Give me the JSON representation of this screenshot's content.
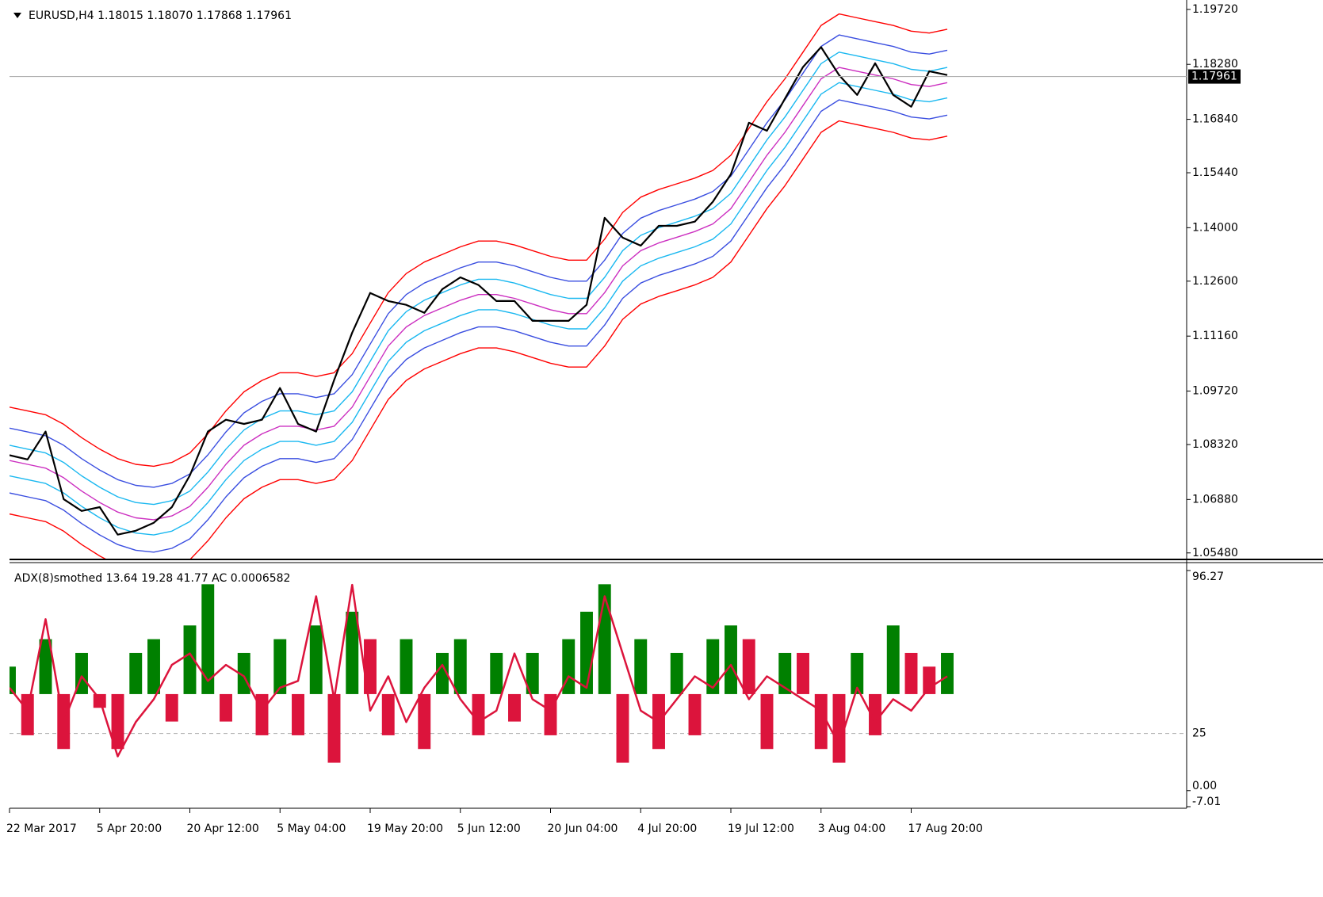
{
  "chart_data": [
    {
      "type": "line",
      "title": "EURUSD,H4  1.18015 1.18070 1.17868 1.17961",
      "xlim": [
        0,
        52
      ],
      "xticks": [
        {
          "value": 0,
          "label": "22 Mar 2017"
        },
        {
          "value": 5,
          "label": "5 Apr 20:00"
        },
        {
          "value": 10,
          "label": "20 Apr 12:00"
        },
        {
          "value": 15,
          "label": "5 May 04:00"
        },
        {
          "value": 20,
          "label": "19 May 20:00"
        },
        {
          "value": 25,
          "label": "5 Jun 12:00"
        },
        {
          "value": 30,
          "label": "20 Jun 04:00"
        },
        {
          "value": 35,
          "label": "4 Jul 20:00"
        },
        {
          "value": 40,
          "label": "19 Jul 12:00"
        },
        {
          "value": 45,
          "label": "3 Aug 04:00"
        },
        {
          "value": 50,
          "label": "17 Aug 20:00"
        }
      ],
      "ylim": [
        1.0533,
        1.198
      ],
      "yticks": [
        {
          "value": 1.1972,
          "label": "1.19720"
        },
        {
          "value": 1.1828,
          "label": "1.18280"
        },
        {
          "value": 1.1684,
          "label": "1.16840"
        },
        {
          "value": 1.1544,
          "label": "1.15440"
        },
        {
          "value": 1.14,
          "label": "1.14000"
        },
        {
          "value": 1.126,
          "label": "1.12600"
        },
        {
          "value": 1.1116,
          "label": "1.11160"
        },
        {
          "value": 1.0972,
          "label": "1.09720"
        },
        {
          "value": 1.0832,
          "label": "1.08320"
        },
        {
          "value": 1.0688,
          "label": "1.06880"
        },
        {
          "value": 1.0548,
          "label": "1.05480"
        }
      ],
      "last_price": {
        "value": 1.17961,
        "label": "1.17961"
      },
      "series": [
        {
          "color": "#ff0000",
          "values": [
            1.093,
            1.092,
            1.091,
            1.0885,
            1.085,
            1.082,
            1.0795,
            1.078,
            1.0775,
            1.0785,
            1.081,
            1.086,
            1.092,
            1.097,
            1.1,
            1.102,
            1.102,
            1.101,
            1.102,
            1.107,
            1.115,
            1.123,
            1.128,
            1.131,
            1.133,
            1.135,
            1.1365,
            1.1365,
            1.1355,
            1.134,
            1.1325,
            1.1315,
            1.1315,
            1.137,
            1.144,
            1.148,
            1.15,
            1.1515,
            1.153,
            1.155,
            1.159,
            1.166,
            1.173,
            1.179,
            1.186,
            1.193,
            1.196,
            1.195,
            1.194,
            1.193,
            1.1915,
            1.191,
            1.192
          ]
        },
        {
          "color": "#ff0000",
          "values": [
            1.065,
            1.064,
            1.063,
            1.0605,
            1.057,
            1.054,
            1.0515,
            1.05,
            1.0495,
            1.0505,
            1.053,
            1.058,
            1.064,
            1.069,
            1.072,
            1.074,
            1.074,
            1.073,
            1.074,
            1.079,
            1.087,
            1.095,
            1.1,
            1.103,
            1.105,
            1.107,
            1.1085,
            1.1085,
            1.1075,
            1.106,
            1.1045,
            1.1035,
            1.1035,
            1.109,
            1.116,
            1.12,
            1.122,
            1.1235,
            1.125,
            1.127,
            1.131,
            1.138,
            1.145,
            1.151,
            1.158,
            1.165,
            1.168,
            1.167,
            1.166,
            1.165,
            1.1635,
            1.163,
            1.164
          ]
        },
        {
          "color": "#3a4ee0",
          "values": [
            1.0875,
            1.0865,
            1.0855,
            1.083,
            1.0795,
            1.0765,
            1.074,
            1.0725,
            1.072,
            1.073,
            1.0755,
            1.0805,
            1.0865,
            1.0915,
            1.0945,
            1.0965,
            1.0965,
            1.0955,
            1.0965,
            1.1015,
            1.1095,
            1.1175,
            1.1225,
            1.1255,
            1.1275,
            1.1295,
            1.131,
            1.131,
            1.13,
            1.1285,
            1.127,
            1.126,
            1.126,
            1.1315,
            1.1385,
            1.1425,
            1.1445,
            1.146,
            1.1475,
            1.1495,
            1.1535,
            1.1605,
            1.1675,
            1.1735,
            1.1805,
            1.1875,
            1.1905,
            1.1895,
            1.1885,
            1.1875,
            1.186,
            1.1855,
            1.1865
          ]
        },
        {
          "color": "#3a4ee0",
          "values": [
            1.0705,
            1.0695,
            1.0685,
            1.066,
            1.0625,
            1.0595,
            1.057,
            1.0555,
            1.055,
            1.056,
            1.0585,
            1.0635,
            1.0695,
            1.0745,
            1.0775,
            1.0795,
            1.0795,
            1.0785,
            1.0795,
            1.0845,
            1.0925,
            1.1005,
            1.1055,
            1.1085,
            1.1105,
            1.1125,
            1.114,
            1.114,
            1.113,
            1.1115,
            1.11,
            1.109,
            1.109,
            1.1145,
            1.1215,
            1.1255,
            1.1275,
            1.129,
            1.1305,
            1.1325,
            1.1365,
            1.1435,
            1.1505,
            1.1565,
            1.1635,
            1.1705,
            1.1735,
            1.1725,
            1.1715,
            1.1705,
            1.169,
            1.1685,
            1.1695
          ]
        },
        {
          "color": "#1ab8f0",
          "values": [
            1.083,
            1.082,
            1.081,
            1.0785,
            1.075,
            1.072,
            1.0695,
            1.068,
            1.0675,
            1.0685,
            1.071,
            1.076,
            1.082,
            1.087,
            1.09,
            1.092,
            1.092,
            1.091,
            1.092,
            1.097,
            1.105,
            1.113,
            1.118,
            1.121,
            1.123,
            1.125,
            1.1265,
            1.1265,
            1.1255,
            1.124,
            1.1225,
            1.1215,
            1.1215,
            1.127,
            1.134,
            1.138,
            1.14,
            1.1415,
            1.143,
            1.145,
            1.149,
            1.156,
            1.163,
            1.169,
            1.176,
            1.183,
            1.186,
            1.185,
            1.184,
            1.183,
            1.1815,
            1.181,
            1.182
          ]
        },
        {
          "color": "#1ab8f0",
          "values": [
            1.075,
            1.074,
            1.073,
            1.0705,
            1.067,
            1.064,
            1.0615,
            1.06,
            1.0595,
            1.0605,
            1.063,
            1.068,
            1.074,
            1.079,
            1.082,
            1.084,
            1.084,
            1.083,
            1.084,
            1.089,
            1.097,
            1.105,
            1.11,
            1.113,
            1.115,
            1.117,
            1.1185,
            1.1185,
            1.1175,
            1.116,
            1.1145,
            1.1135,
            1.1135,
            1.119,
            1.126,
            1.13,
            1.132,
            1.1335,
            1.135,
            1.137,
            1.141,
            1.148,
            1.155,
            1.161,
            1.168,
            1.175,
            1.178,
            1.177,
            1.176,
            1.175,
            1.1735,
            1.173,
            1.174
          ]
        },
        {
          "color": "#cc2fc0",
          "values": [
            1.079,
            1.078,
            1.077,
            1.0745,
            1.071,
            1.068,
            1.0655,
            1.064,
            1.0635,
            1.0645,
            1.067,
            1.072,
            1.078,
            1.083,
            1.086,
            1.088,
            1.088,
            1.087,
            1.088,
            1.093,
            1.101,
            1.109,
            1.114,
            1.117,
            1.119,
            1.121,
            1.1225,
            1.1225,
            1.1215,
            1.12,
            1.1185,
            1.1175,
            1.1175,
            1.123,
            1.13,
            1.134,
            1.136,
            1.1375,
            1.139,
            1.141,
            1.145,
            1.152,
            1.159,
            1.165,
            1.172,
            1.179,
            1.182,
            1.181,
            1.18,
            1.179,
            1.1775,
            1.177,
            1.178
          ]
        },
        {
          "color": "#000000",
          "values": [
            1.0804,
            1.0793,
            1.0866,
            1.0689,
            1.0658,
            1.0668,
            1.0596,
            1.0606,
            1.0627,
            1.0668,
            1.0751,
            1.0866,
            1.0897,
            1.0886,
            1.0897,
            1.098,
            1.0886,
            1.0866,
            1.1001,
            1.1125,
            1.1229,
            1.1208,
            1.1198,
            1.1177,
            1.1239,
            1.127,
            1.125,
            1.1208,
            1.1208,
            1.1156,
            1.1156,
            1.1156,
            1.1198,
            1.1426,
            1.1374,
            1.1353,
            1.1405,
            1.1405,
            1.1416,
            1.1468,
            1.154,
            1.1675,
            1.1654,
            1.1738,
            1.1821,
            1.1873,
            1.18,
            1.1748,
            1.1831,
            1.1748,
            1.1717,
            1.181,
            1.18
          ]
        }
      ]
    },
    {
      "type": "bar",
      "title": "ADX(8)smothed 13.64 19.28 41.77  AC 0.0006582",
      "xlim": [
        0,
        52
      ],
      "ylim": [
        -7.01,
        96.27
      ],
      "yticks": [
        96.27,
        {
          "value": 0,
          "label": "0.00"
        },
        -7.01
      ],
      "levels": [
        25
      ],
      "line": {
        "color": "#dc143c",
        "values": [
          45,
          35,
          75,
          30,
          50,
          40,
          15,
          30,
          40,
          55,
          60,
          48,
          55,
          50,
          35,
          45,
          48,
          85,
          40,
          90,
          35,
          50,
          30,
          45,
          55,
          40,
          30,
          35,
          60,
          40,
          35,
          50,
          45,
          85,
          60,
          35,
          30,
          40,
          50,
          45,
          55,
          40,
          50,
          45,
          40,
          35,
          20,
          45,
          30,
          40,
          35,
          45,
          50
        ]
      },
      "y2lim": [
        -0.0082,
        0.009
      ],
      "up_color": "#008000",
      "down_color": "#dc143c",
      "values": [
        0.002,
        -0.003,
        0.004,
        -0.004,
        0.003,
        -0.001,
        -0.004,
        0.003,
        0.004,
        -0.002,
        0.005,
        0.008,
        -0.002,
        0.003,
        -0.003,
        0.004,
        -0.003,
        0.005,
        -0.005,
        0.006,
        0.004,
        -0.003,
        0.004,
        -0.004,
        0.003,
        0.004,
        -0.003,
        0.003,
        -0.002,
        0.003,
        -0.003,
        0.004,
        0.006,
        0.008,
        -0.005,
        0.004,
        -0.004,
        0.003,
        -0.003,
        0.004,
        0.005,
        0.004,
        -0.004,
        0.003,
        0.003,
        -0.004,
        -0.005,
        0.003,
        -0.003,
        0.005,
        0.003,
        0.002,
        0.003
      ]
    }
  ]
}
